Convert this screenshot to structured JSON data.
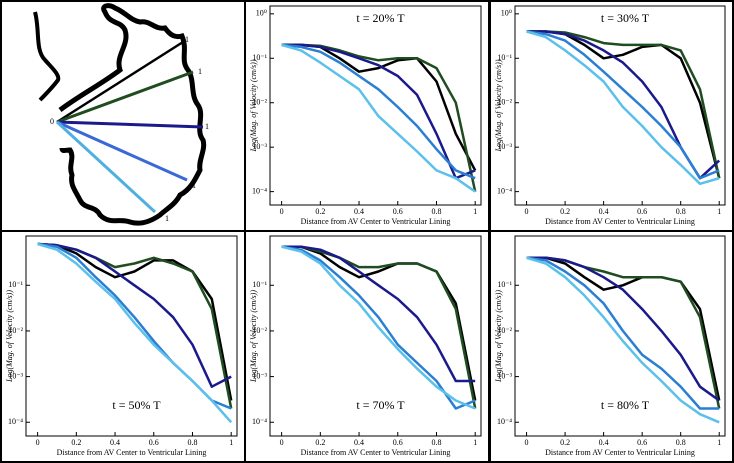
{
  "diagram": {
    "center_label": "0",
    "end_labels": [
      "1",
      "1",
      "1",
      "1",
      "1"
    ]
  },
  "chart_data": [
    {
      "type": "line",
      "title": "t = 20% T",
      "title_position": "top",
      "x_label": "Distance from AV Center to Ventricular Lining",
      "y_label": "Log(Mag. of Velocity (cm/s))",
      "log_y": true,
      "xlim": [
        -0.06,
        1.03
      ],
      "xticks": [
        0,
        0.2,
        0.4,
        0.6,
        0.8,
        1
      ],
      "ylim": [
        5e-05,
        1.5
      ],
      "yticks": [
        {
          "value": 1,
          "label": "10⁰"
        },
        {
          "value": 0.1,
          "label": "10⁻¹"
        },
        {
          "value": 0.01,
          "label": "10⁻²"
        },
        {
          "value": 0.001,
          "label": "10⁻³"
        },
        {
          "value": 0.0001,
          "label": "10⁻⁴"
        }
      ],
      "x": [
        0,
        0.1,
        0.2,
        0.3,
        0.4,
        0.5,
        0.6,
        0.7,
        0.8,
        0.9,
        1
      ],
      "series": [
        {
          "color": "#000000",
          "values": [
            0.2,
            0.2,
            0.18,
            0.1,
            0.05,
            0.06,
            0.09,
            0.1,
            0.03,
            0.002,
            0.0003
          ]
        },
        {
          "color": "#1f4d1f",
          "values": [
            0.2,
            0.2,
            0.19,
            0.15,
            0.11,
            0.09,
            0.1,
            0.1,
            0.06,
            0.01,
            0.0001
          ]
        },
        {
          "color": "#1a1a8c",
          "values": [
            0.2,
            0.2,
            0.18,
            0.14,
            0.1,
            0.07,
            0.04,
            0.015,
            0.002,
            0.0002,
            0.0003
          ]
        },
        {
          "color": "#2a7fd4",
          "values": [
            0.2,
            0.18,
            0.14,
            0.08,
            0.04,
            0.02,
            0.008,
            0.003,
            0.0009,
            0.0003,
            0.0002
          ]
        },
        {
          "color": "#5bc0eb",
          "values": [
            0.2,
            0.15,
            0.08,
            0.04,
            0.02,
            0.005,
            0.002,
            0.0008,
            0.0003,
            0.0002,
            0.0001
          ]
        }
      ]
    },
    {
      "type": "line",
      "title": "t = 30% T",
      "title_position": "top",
      "x_label": "Distance from AV Center to Ventricular Lining",
      "y_label": "Log(Mag. of Velocity (cm/s))",
      "log_y": true,
      "xlim": [
        -0.06,
        1.03
      ],
      "xticks": [
        0,
        0.2,
        0.4,
        0.6,
        0.8,
        1
      ],
      "ylim": [
        5e-05,
        1.5
      ],
      "yticks": [
        {
          "value": 1,
          "label": "10⁰"
        },
        {
          "value": 0.1,
          "label": "10⁻¹"
        },
        {
          "value": 0.01,
          "label": "10⁻²"
        },
        {
          "value": 0.001,
          "label": "10⁻³"
        },
        {
          "value": 0.0001,
          "label": "10⁻⁴"
        }
      ],
      "x": [
        0,
        0.1,
        0.2,
        0.3,
        0.4,
        0.5,
        0.6,
        0.7,
        0.8,
        0.9,
        1
      ],
      "series": [
        {
          "color": "#000000",
          "values": [
            0.4,
            0.4,
            0.35,
            0.2,
            0.1,
            0.12,
            0.18,
            0.2,
            0.1,
            0.01,
            0.0002
          ]
        },
        {
          "color": "#1f4d1f",
          "values": [
            0.4,
            0.4,
            0.38,
            0.3,
            0.22,
            0.2,
            0.2,
            0.2,
            0.15,
            0.02,
            0.0002
          ]
        },
        {
          "color": "#1a1a8c",
          "values": [
            0.4,
            0.4,
            0.35,
            0.25,
            0.15,
            0.08,
            0.03,
            0.008,
            0.001,
            0.0002,
            0.0005
          ]
        },
        {
          "color": "#2a7fd4",
          "values": [
            0.4,
            0.35,
            0.25,
            0.12,
            0.05,
            0.02,
            0.008,
            0.003,
            0.001,
            0.0002,
            0.0003
          ]
        },
        {
          "color": "#5bc0eb",
          "values": [
            0.4,
            0.3,
            0.15,
            0.07,
            0.03,
            0.008,
            0.003,
            0.001,
            0.0004,
            0.00015,
            0.0002
          ]
        }
      ]
    },
    {
      "type": "line",
      "title": "t = 50% T",
      "title_position": "bottom",
      "x_label": "Distance from AV Center to Ventricular Lining",
      "y_label": "Log(Mag. of Velocity (cm/s))",
      "log_y": true,
      "xlim": [
        -0.06,
        1.03
      ],
      "xticks": [
        0,
        0.2,
        0.4,
        0.6,
        0.8,
        1
      ],
      "ylim": [
        5e-05,
        1.2
      ],
      "yticks": [
        {
          "value": 0.1,
          "label": "10⁻¹"
        },
        {
          "value": 0.01,
          "label": "10⁻²"
        },
        {
          "value": 0.001,
          "label": "10⁻³"
        },
        {
          "value": 0.0001,
          "label": "10⁻⁴"
        }
      ],
      "x": [
        0,
        0.1,
        0.2,
        0.3,
        0.4,
        0.5,
        0.6,
        0.7,
        0.8,
        0.9,
        1
      ],
      "series": [
        {
          "color": "#000000",
          "values": [
            0.8,
            0.75,
            0.5,
            0.25,
            0.15,
            0.2,
            0.35,
            0.35,
            0.2,
            0.05,
            0.0003
          ]
        },
        {
          "color": "#1f4d1f",
          "values": [
            0.8,
            0.75,
            0.6,
            0.4,
            0.25,
            0.3,
            0.4,
            0.3,
            0.2,
            0.03,
            0.0002
          ]
        },
        {
          "color": "#1a1a8c",
          "values": [
            0.8,
            0.75,
            0.6,
            0.4,
            0.2,
            0.1,
            0.05,
            0.02,
            0.005,
            0.0006,
            0.001
          ]
        },
        {
          "color": "#2a7fd4",
          "values": [
            0.8,
            0.7,
            0.4,
            0.15,
            0.06,
            0.02,
            0.006,
            0.002,
            0.0008,
            0.0003,
            0.0002
          ]
        },
        {
          "color": "#5bc0eb",
          "values": [
            0.8,
            0.6,
            0.3,
            0.12,
            0.05,
            0.015,
            0.005,
            0.002,
            0.0008,
            0.0003,
            0.0001
          ]
        }
      ]
    },
    {
      "type": "line",
      "title": "t = 70% T",
      "title_position": "bottom",
      "x_label": "Distance from AV Center to Ventricular Lining",
      "y_label": "Log(Mag. of Velocity (cm/s))",
      "log_y": true,
      "xlim": [
        -0.06,
        1.03
      ],
      "xticks": [
        0,
        0.2,
        0.4,
        0.6,
        0.8,
        1
      ],
      "ylim": [
        5e-05,
        1.2
      ],
      "yticks": [
        {
          "value": 0.1,
          "label": "10⁻¹"
        },
        {
          "value": 0.01,
          "label": "10⁻²"
        },
        {
          "value": 0.001,
          "label": "10⁻³"
        },
        {
          "value": 0.0001,
          "label": "10⁻⁴"
        }
      ],
      "x": [
        0,
        0.1,
        0.2,
        0.3,
        0.4,
        0.5,
        0.6,
        0.7,
        0.8,
        0.9,
        1
      ],
      "series": [
        {
          "color": "#000000",
          "values": [
            0.7,
            0.7,
            0.5,
            0.25,
            0.15,
            0.2,
            0.3,
            0.3,
            0.2,
            0.04,
            0.0003
          ]
        },
        {
          "color": "#1f4d1f",
          "values": [
            0.7,
            0.7,
            0.55,
            0.4,
            0.25,
            0.25,
            0.3,
            0.3,
            0.2,
            0.03,
            0.0002
          ]
        },
        {
          "color": "#1a1a8c",
          "values": [
            0.7,
            0.7,
            0.6,
            0.4,
            0.2,
            0.1,
            0.05,
            0.02,
            0.005,
            0.0008,
            0.0008
          ]
        },
        {
          "color": "#2a7fd4",
          "values": [
            0.7,
            0.6,
            0.35,
            0.15,
            0.06,
            0.02,
            0.005,
            0.002,
            0.0008,
            0.0002,
            0.0003
          ]
        },
        {
          "color": "#5bc0eb",
          "values": [
            0.7,
            0.55,
            0.3,
            0.1,
            0.04,
            0.012,
            0.004,
            0.0015,
            0.0006,
            0.0003,
            0.0002
          ]
        }
      ]
    },
    {
      "type": "line",
      "title": "t = 80% T",
      "title_position": "bottom",
      "x_label": "Distance from AV Center to Ventricular Lining",
      "y_label": "Log(Mag. of Velocity (cm/s))",
      "log_y": true,
      "xlim": [
        -0.06,
        1.03
      ],
      "xticks": [
        0,
        0.2,
        0.4,
        0.6,
        0.8,
        1
      ],
      "ylim": [
        5e-05,
        1.2
      ],
      "yticks": [
        {
          "value": 0.1,
          "label": "10⁻¹"
        },
        {
          "value": 0.01,
          "label": "10⁻²"
        },
        {
          "value": 0.001,
          "label": "10⁻³"
        },
        {
          "value": 0.0001,
          "label": "10⁻⁴"
        }
      ],
      "x": [
        0,
        0.1,
        0.2,
        0.3,
        0.4,
        0.5,
        0.6,
        0.7,
        0.8,
        0.9,
        1
      ],
      "series": [
        {
          "color": "#000000",
          "values": [
            0.4,
            0.4,
            0.3,
            0.15,
            0.08,
            0.1,
            0.15,
            0.15,
            0.12,
            0.03,
            0.0003
          ]
        },
        {
          "color": "#1f4d1f",
          "values": [
            0.4,
            0.4,
            0.35,
            0.25,
            0.2,
            0.15,
            0.15,
            0.15,
            0.12,
            0.02,
            0.0002
          ]
        },
        {
          "color": "#1a1a8c",
          "values": [
            0.4,
            0.4,
            0.35,
            0.25,
            0.15,
            0.08,
            0.03,
            0.01,
            0.003,
            0.0006,
            0.0003
          ]
        },
        {
          "color": "#2a7fd4",
          "values": [
            0.4,
            0.35,
            0.2,
            0.1,
            0.04,
            0.01,
            0.003,
            0.0015,
            0.0006,
            0.0002,
            0.0002
          ]
        },
        {
          "color": "#5bc0eb",
          "values": [
            0.4,
            0.3,
            0.15,
            0.06,
            0.02,
            0.006,
            0.002,
            0.0008,
            0.0003,
            0.00015,
            0.0001
          ]
        }
      ]
    }
  ]
}
